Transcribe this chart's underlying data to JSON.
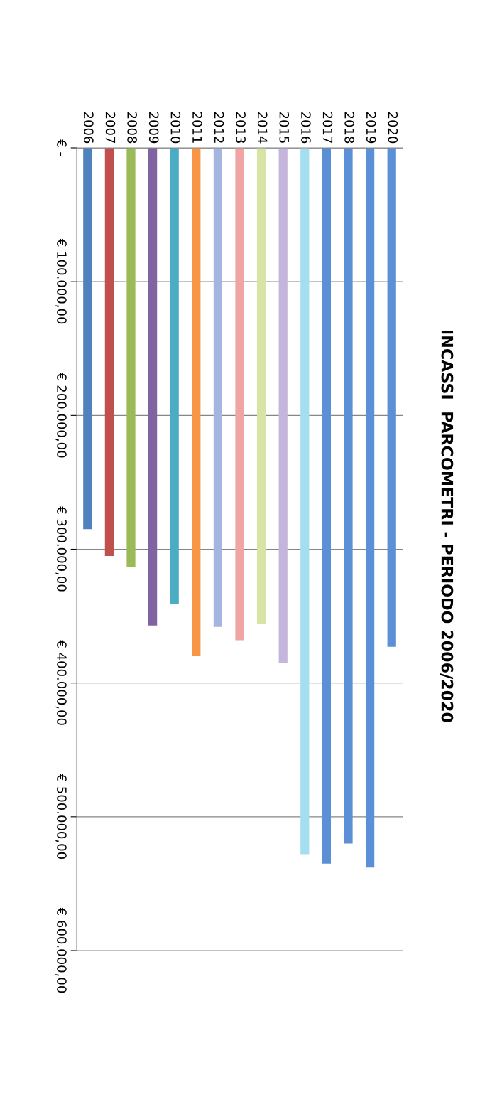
{
  "chart_data": {
    "type": "bar",
    "title": "INCASSI  PARCOMETRI - PERIODO 2006/2020",
    "categories": [
      "2006",
      "2007",
      "2008",
      "2009",
      "2010",
      "2011",
      "2012",
      "2013",
      "2014",
      "2015",
      "2016",
      "2017",
      "2018",
      "2019",
      "2020"
    ],
    "values": [
      285000,
      305000,
      313000,
      357000,
      341000,
      380000,
      358000,
      368000,
      356000,
      385000,
      528000,
      535000,
      520000,
      538000,
      373000
    ],
    "colors": [
      "#4f81bd",
      "#c0504d",
      "#9bbb59",
      "#8064a2",
      "#4bacc6",
      "#f79646",
      "#a5b5e0",
      "#f0a4a4",
      "#d7e4a5",
      "#c5b5dc",
      "#a5def0",
      "#5b8fd6",
      "#5b8fd6",
      "#5b8fd6",
      "#5b8fd6"
    ],
    "ylim": [
      600000,
      0
    ],
    "yticks": [
      {
        "value": 0,
        "label": "€ -"
      },
      {
        "value": 100000,
        "label": "€ 100.000,00"
      },
      {
        "value": 200000,
        "label": "€ 200.000,00"
      },
      {
        "value": 300000,
        "label": "€ 300.000,00"
      },
      {
        "value": 400000,
        "label": "€ 400.000,00"
      },
      {
        "value": 500000,
        "label": "€ 500.000,00"
      },
      {
        "value": 600000,
        "label": "€ 600.000,00"
      }
    ],
    "grid": "y"
  }
}
